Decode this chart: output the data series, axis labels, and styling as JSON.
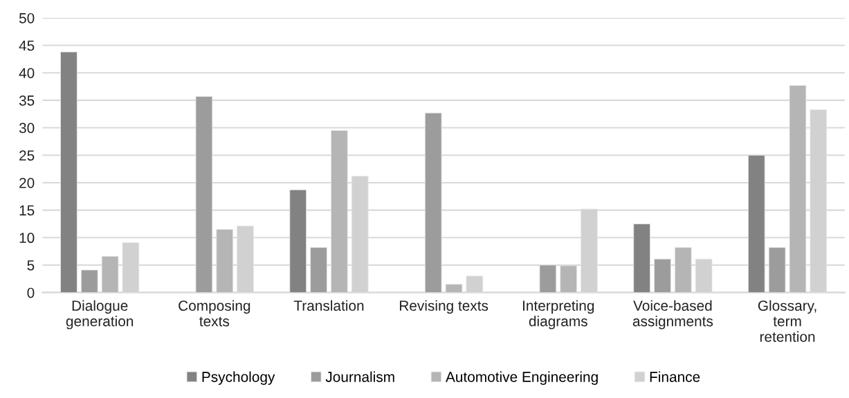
{
  "chart_data": {
    "type": "bar",
    "categories": [
      "Dialogue\ngeneration",
      "Composing\ntexts",
      "Translation",
      "Revising texts",
      "Interpreting\ndiagrams",
      "Voice-based\nassignments",
      "Glossary,\nterm\nretention"
    ],
    "series": [
      {
        "name": "Psychology",
        "color": "#828282",
        "values": [
          43.8,
          null,
          18.7,
          null,
          null,
          12.5,
          25.0
        ]
      },
      {
        "name": "Journalism",
        "color": "#9c9c9c",
        "values": [
          4.1,
          35.7,
          8.2,
          32.7,
          5.0,
          6.1,
          8.2
        ]
      },
      {
        "name": "Automotive Engineering",
        "color": "#b5b5b5",
        "values": [
          6.6,
          11.5,
          29.5,
          1.5,
          4.9,
          8.2,
          37.7
        ]
      },
      {
        "name": "Finance",
        "color": "#d1d1d1",
        "values": [
          9.1,
          12.1,
          21.2,
          3.0,
          15.2,
          6.1,
          33.3
        ]
      }
    ],
    "ylim": [
      0,
      50
    ],
    "yticks": [
      0,
      5,
      10,
      15,
      20,
      25,
      30,
      35,
      40,
      45,
      50
    ],
    "grid": "y",
    "legend": "bottom"
  }
}
